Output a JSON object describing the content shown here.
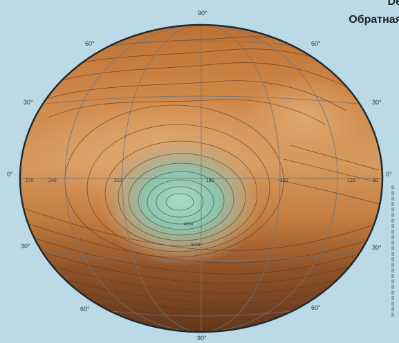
{
  "title": {
    "line1": "De",
    "line2": "Обратная"
  },
  "latitude_labels": {
    "north_pole": "90°",
    "north_60": "60°",
    "north_30": "30°",
    "equator": "0°",
    "south_30": "30°",
    "south_60": "60°",
    "south_pole": "90°"
  },
  "longitude_labels": [
    "270",
    "240",
    "210",
    "180",
    "150",
    "120",
    "90"
  ],
  "contour_labels": [
    "4000",
    "3000"
  ],
  "colors": {
    "background": "#bcd9e6",
    "terrain_highland": "#c9803e",
    "terrain_lowland": "#8a4f26",
    "basin": "#8fc9b4",
    "graticule": "#6c7480",
    "contour": "#5b3a22",
    "rim": "#1f2a2e"
  }
}
